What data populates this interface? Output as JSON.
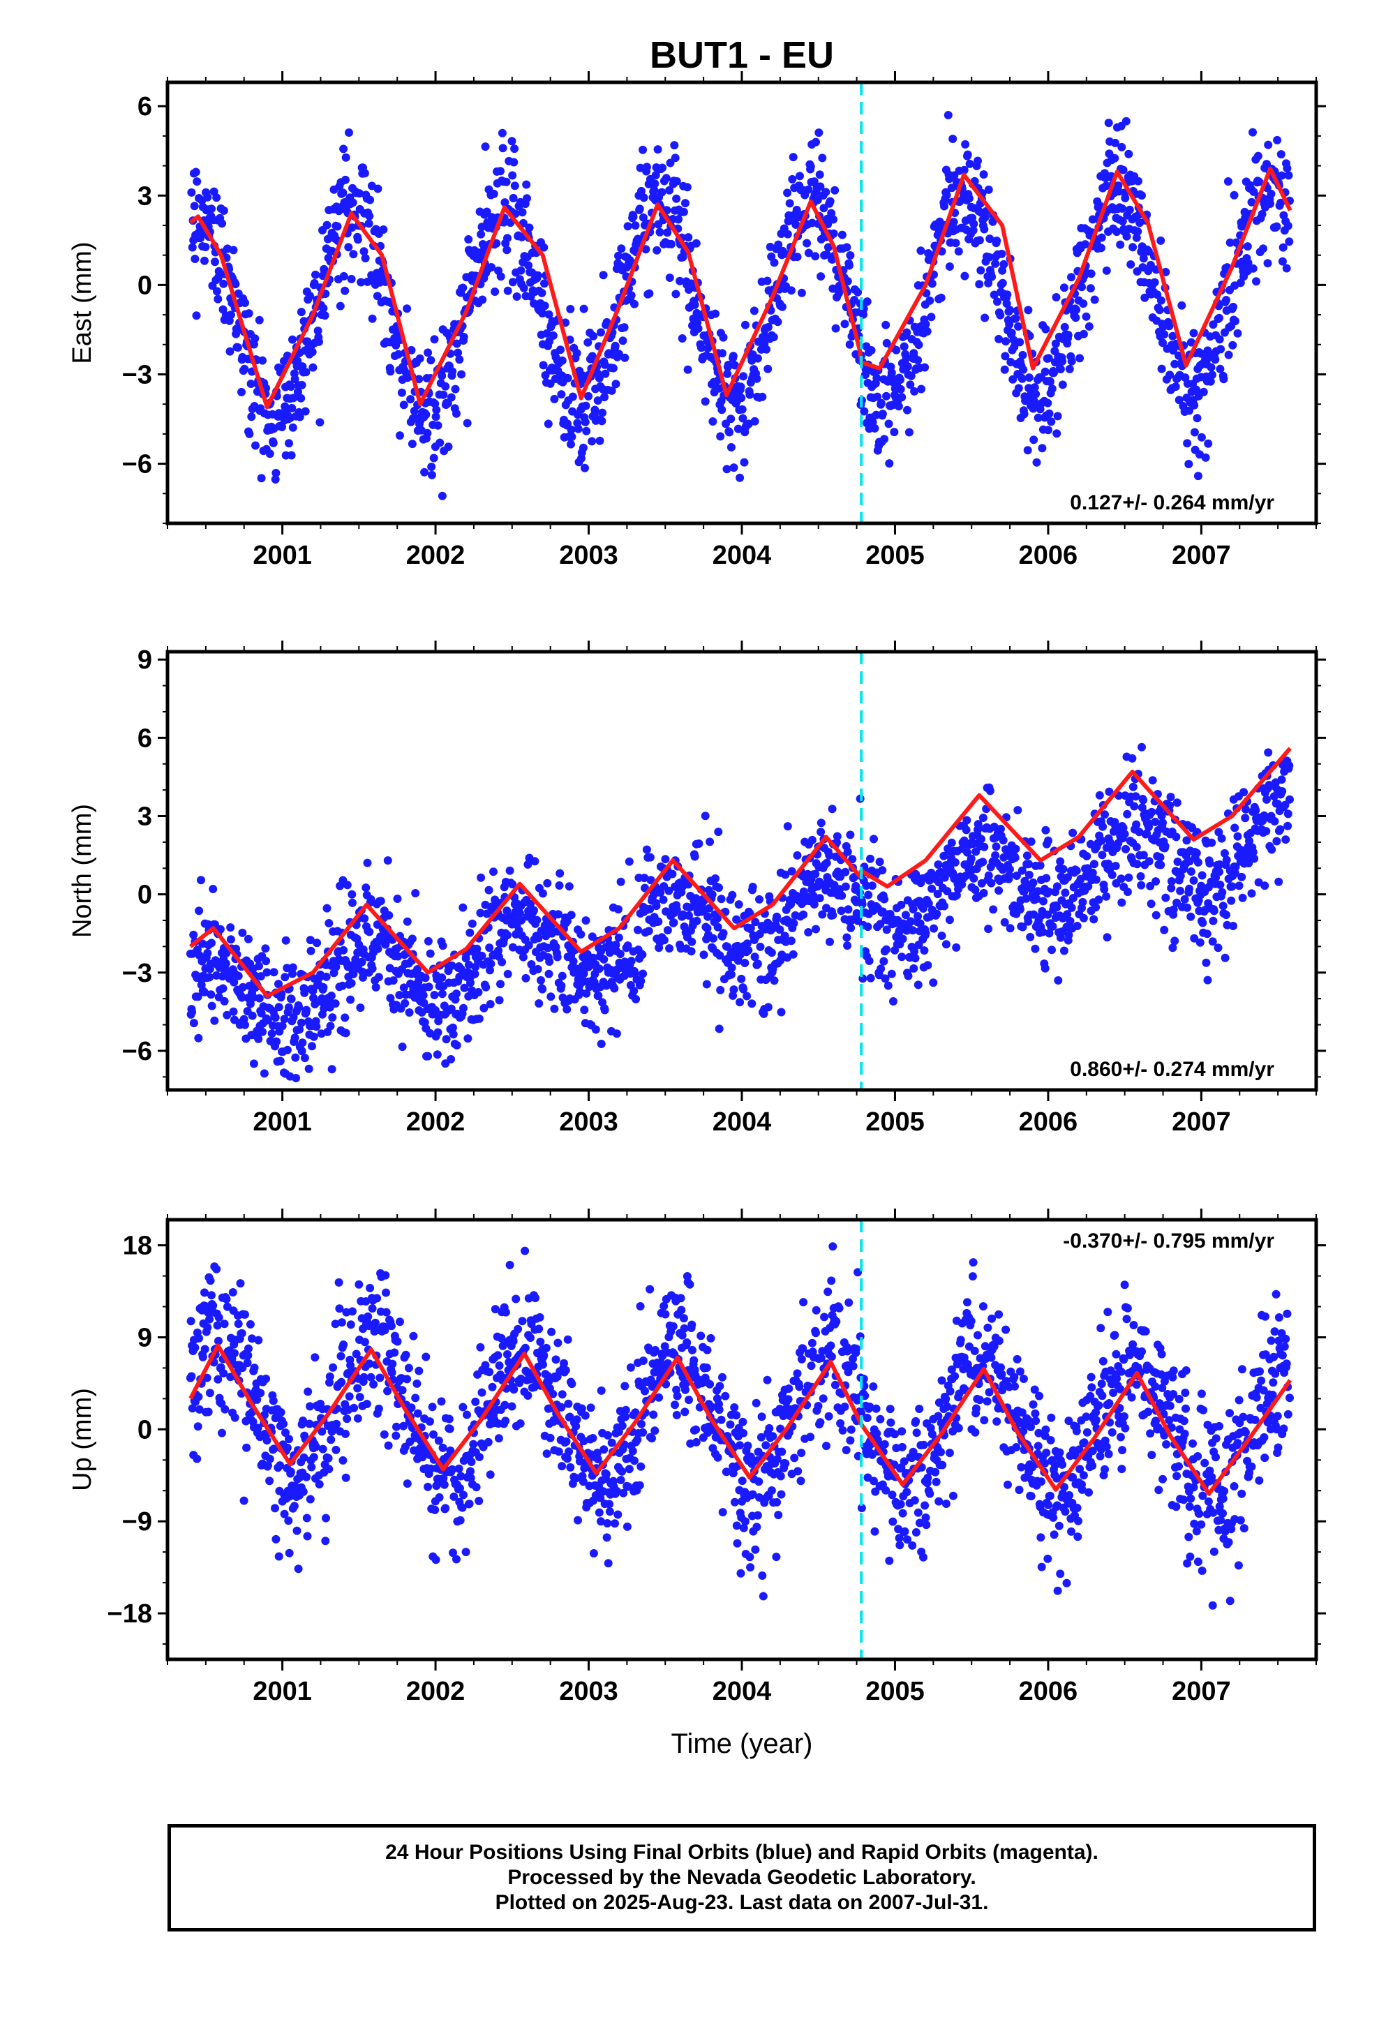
{
  "chart_data": {
    "type": "scatter",
    "title": "BUT1 - EU",
    "xlabel": "Time (year)",
    "xlim": [
      2000.25,
      2007.75
    ],
    "x_ticks": [
      "2001",
      "2002",
      "2003",
      "2004",
      "2005",
      "2006",
      "2007"
    ],
    "x_tick_values": [
      2001,
      2002,
      2003,
      2004,
      2005,
      2006,
      2007
    ],
    "data_start": 2000.4,
    "data_end": 2007.58,
    "equipment_change_epoch": 2004.78,
    "colors": {
      "points": "#1a1aff",
      "model": "#ff1a1a",
      "marker_line": "#00e5ee",
      "frame": "#000000"
    },
    "panels": [
      {
        "name": "east",
        "ylabel": "East (mm)",
        "ylim": [
          -8,
          6.8
        ],
        "y_ticks": [
          "6",
          "3",
          "0",
          "-3",
          "-6"
        ],
        "y_tick_values": [
          6,
          3,
          0,
          -3,
          -6
        ],
        "rate_label": "0.127+/- 0.264 mm/yr",
        "model": {
          "x": [
            2000.4,
            2000.45,
            2000.6,
            2000.9,
            2001.2,
            2001.45,
            2001.65,
            2001.9,
            2002.2,
            2002.45,
            2002.7,
            2002.95,
            2003.2,
            2003.45,
            2003.65,
            2003.9,
            2004.2,
            2004.45,
            2004.6,
            2004.77,
            2004.78,
            2004.9,
            2005.2,
            2005.45,
            2005.7,
            2005.9,
            2006.2,
            2006.45,
            2006.65,
            2006.9,
            2007.2,
            2007.45,
            2007.58
          ],
          "y": [
            2.1,
            2.3,
            1.0,
            -4.1,
            -1.0,
            2.4,
            1.0,
            -4.0,
            -0.9,
            2.6,
            1.0,
            -3.8,
            -0.7,
            2.7,
            1.1,
            -3.7,
            -0.4,
            2.8,
            1.3,
            -2.2,
            -2.6,
            -2.8,
            0.0,
            3.7,
            2.0,
            -2.8,
            0.2,
            3.8,
            2.1,
            -2.7,
            0.6,
            3.9,
            2.5
          ]
        },
        "points": {
          "amplitude": 3.4,
          "offset": -0.6,
          "trend": 0.127,
          "noise": 1.1,
          "phase_peak": 0.45,
          "count": 2200
        }
      },
      {
        "name": "north",
        "ylabel": "North (mm)",
        "ylim": [
          -7.5,
          9.3
        ],
        "y_ticks": [
          "9",
          "6",
          "3",
          "0",
          "-3",
          "-6"
        ],
        "y_tick_values": [
          9,
          6,
          3,
          0,
          -3,
          -6
        ],
        "rate_label": "0.860+/- 0.274 mm/yr",
        "model": {
          "x": [
            2000.4,
            2000.55,
            2000.9,
            2001.2,
            2001.55,
            2001.95,
            2002.2,
            2002.55,
            2002.95,
            2003.2,
            2003.55,
            2003.95,
            2004.2,
            2004.55,
            2004.77,
            2004.78,
            2004.95,
            2005.2,
            2005.55,
            2005.95,
            2006.2,
            2006.55,
            2006.95,
            2007.2,
            2007.58
          ],
          "y": [
            -2.0,
            -1.3,
            -3.9,
            -3.0,
            -0.4,
            -3.0,
            -2.1,
            0.4,
            -2.2,
            -1.3,
            1.3,
            -1.3,
            -0.4,
            2.2,
            0.7,
            0.9,
            0.3,
            1.3,
            3.8,
            1.3,
            2.2,
            4.7,
            2.1,
            3.0,
            5.6
          ]
        },
        "points": {
          "amplitude": 1.3,
          "offset": -1.0,
          "trend": 0.86,
          "noise": 1.2,
          "phase_peak": 0.55,
          "count": 2200
        }
      },
      {
        "name": "up",
        "ylabel": "Up (mm)",
        "ylim": [
          -22.5,
          20.5
        ],
        "y_ticks": [
          "18",
          "9",
          "0",
          "-9",
          "-18"
        ],
        "y_tick_values": [
          18,
          9,
          0,
          -9,
          -18
        ],
        "rate_label": "-0.370+/- 0.795 mm/yr",
        "model": {
          "x": [
            2000.4,
            2000.58,
            2000.8,
            2001.05,
            2001.3,
            2001.58,
            2001.8,
            2002.05,
            2002.3,
            2002.58,
            2002.8,
            2003.05,
            2003.3,
            2003.58,
            2003.8,
            2004.05,
            2004.3,
            2004.58,
            2004.78,
            2005.05,
            2005.3,
            2005.58,
            2005.8,
            2006.05,
            2006.3,
            2006.58,
            2006.8,
            2007.05,
            2007.3,
            2007.58
          ],
          "y": [
            3.0,
            8.2,
            2.5,
            -3.4,
            1.5,
            7.8,
            2.0,
            -3.9,
            1.0,
            7.4,
            1.5,
            -4.3,
            0.6,
            7.0,
            1.0,
            -4.7,
            0.2,
            6.6,
            0.5,
            -5.4,
            -0.5,
            5.9,
            -0.3,
            -5.9,
            -0.9,
            5.5,
            -0.7,
            -6.3,
            -1.2,
            4.8
          ]
        },
        "points": {
          "amplitude": 6.5,
          "offset": 1.0,
          "trend": -0.37,
          "noise": 3.6,
          "phase_peak": 0.58,
          "count": 2200
        }
      }
    ]
  },
  "caption": {
    "line1": "24 Hour Positions Using Final Orbits (blue) and Rapid Orbits (magenta).",
    "line2": "Processed by the Nevada Geodetic Laboratory.",
    "line3": "Plotted on 2025-Aug-23. Last data on 2007-Jul-31."
  }
}
